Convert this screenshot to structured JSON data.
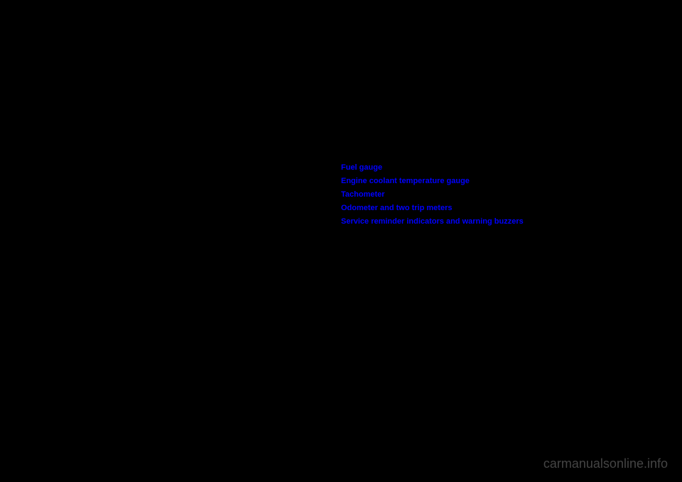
{
  "links": [
    "Fuel gauge",
    "Engine coolant temperature gauge",
    "Tachometer",
    "Odometer and two trip meters",
    "Service reminder indicators and warning buzzers"
  ],
  "watermark": "carmanualsonline.info",
  "colors": {
    "background": "#000000",
    "link": "#0000ff",
    "watermark": "#888888"
  }
}
